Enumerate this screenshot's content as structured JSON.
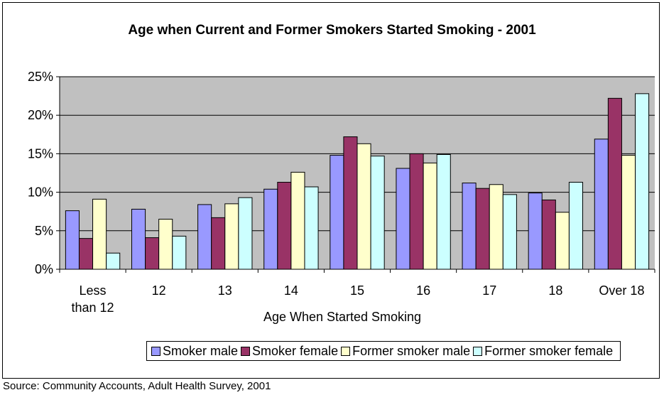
{
  "chart_data": {
    "type": "bar",
    "title": "Age when Current and Former Smokers Started Smoking - 2001",
    "xlabel": "Age When Started Smoking",
    "ylabel": "",
    "ylim": [
      0,
      0.25
    ],
    "yticks": [
      "0%",
      "5%",
      "10%",
      "15%",
      "20%",
      "25%"
    ],
    "categories": [
      [
        "Less",
        "than 12"
      ],
      [
        "12"
      ],
      [
        "13"
      ],
      [
        "14"
      ],
      [
        "15"
      ],
      [
        "16"
      ],
      [
        "17"
      ],
      [
        "18"
      ],
      [
        "Over 18"
      ]
    ],
    "grid": true,
    "legend_position": "bottom",
    "series": [
      {
        "name": "Smoker male",
        "color": "#9999FF",
        "values": [
          0.076,
          0.078,
          0.084,
          0.104,
          0.148,
          0.131,
          0.112,
          0.099,
          0.169
        ]
      },
      {
        "name": "Smoker female",
        "color": "#993366",
        "values": [
          0.04,
          0.041,
          0.067,
          0.113,
          0.172,
          0.15,
          0.105,
          0.09,
          0.222
        ]
      },
      {
        "name": "Former smoker male",
        "color": "#FFFFCC",
        "values": [
          0.091,
          0.065,
          0.085,
          0.126,
          0.163,
          0.138,
          0.11,
          0.074,
          0.148
        ]
      },
      {
        "name": "Former smoker female",
        "color": "#CCFFFF",
        "values": [
          0.021,
          0.043,
          0.093,
          0.107,
          0.147,
          0.149,
          0.097,
          0.113,
          0.228
        ]
      }
    ],
    "plot_background": "#C0C0C0"
  },
  "source_note": "Source: Community Accounts, Adult Health Survey, 2001"
}
